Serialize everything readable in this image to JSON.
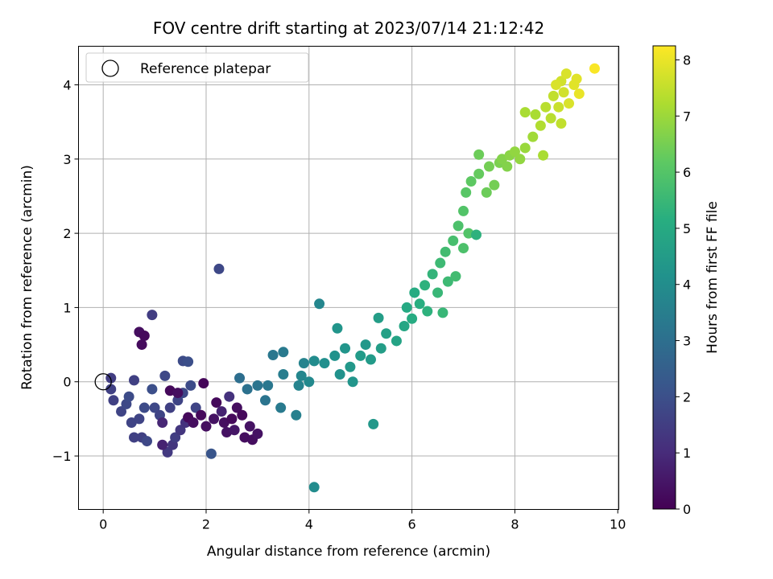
{
  "chart_data": {
    "type": "scatter",
    "title": "FOV centre drift starting at 2023/07/14 21:12:42",
    "xlabel": "Angular distance from reference (arcmin)",
    "ylabel": "Rotation from reference (arcmin)",
    "xlim": [
      -0.48,
      10.02
    ],
    "ylim": [
      -1.72,
      4.52
    ],
    "xticks": [
      0,
      2,
      4,
      6,
      8,
      10
    ],
    "yticks": [
      -1,
      0,
      1,
      2,
      3,
      4
    ],
    "xtick_labels": [
      "0",
      "2",
      "4",
      "6",
      "8",
      "10"
    ],
    "ytick_labels": [
      "−1",
      "0",
      "1",
      "2",
      "3",
      "4"
    ],
    "grid": true,
    "legend": {
      "placement": "top-left",
      "entries": [
        "Reference platepar"
      ]
    },
    "reference_point": {
      "x": 0,
      "y": 0,
      "marker": "open-circle"
    },
    "colorbar": {
      "label": "Hours from first FF file",
      "colormap": "viridis",
      "range": [
        0,
        8.25
      ],
      "ticks": [
        0,
        1,
        2,
        3,
        4,
        5,
        6,
        7,
        8
      ],
      "tick_labels": [
        "0",
        "1",
        "2",
        "3",
        "4",
        "5",
        "6",
        "7",
        "8"
      ]
    },
    "series": [
      {
        "color_by": "hours",
        "points": [
          {
            "x": 0.7,
            "y": 0.67,
            "h": 0.3
          },
          {
            "x": 0.8,
            "y": 0.62,
            "h": 0.2
          },
          {
            "x": 0.75,
            "y": 0.5,
            "h": 0.25
          },
          {
            "x": 0.95,
            "y": 0.9,
            "h": 1.5
          },
          {
            "x": 2.25,
            "y": 1.52,
            "h": 1.8
          },
          {
            "x": 1.2,
            "y": 0.08,
            "h": 1.8
          },
          {
            "x": 1.55,
            "y": 0.28,
            "h": 1.9
          },
          {
            "x": 1.65,
            "y": 0.27,
            "h": 2.0
          },
          {
            "x": 0.6,
            "y": 0.02,
            "h": 1.6
          },
          {
            "x": 0.15,
            "y": 0.05,
            "h": 1.5
          },
          {
            "x": 0.15,
            "y": -0.1,
            "h": 1.6
          },
          {
            "x": 0.2,
            "y": -0.25,
            "h": 1.6
          },
          {
            "x": 0.35,
            "y": -0.4,
            "h": 1.7
          },
          {
            "x": 0.45,
            "y": -0.3,
            "h": 1.8
          },
          {
            "x": 0.5,
            "y": -0.2,
            "h": 1.9
          },
          {
            "x": 0.55,
            "y": -0.55,
            "h": 1.7
          },
          {
            "x": 0.6,
            "y": -0.75,
            "h": 1.6
          },
          {
            "x": 0.7,
            "y": -0.5,
            "h": 1.7
          },
          {
            "x": 0.75,
            "y": -0.75,
            "h": 1.6
          },
          {
            "x": 0.85,
            "y": -0.8,
            "h": 1.8
          },
          {
            "x": 0.8,
            "y": -0.35,
            "h": 1.9
          },
          {
            "x": 0.95,
            "y": -0.1,
            "h": 2.0
          },
          {
            "x": 1.0,
            "y": -0.35,
            "h": 1.8
          },
          {
            "x": 1.1,
            "y": -0.45,
            "h": 1.7
          },
          {
            "x": 1.25,
            "y": -0.95,
            "h": 1.4
          },
          {
            "x": 1.35,
            "y": -0.85,
            "h": 1.3
          },
          {
            "x": 1.4,
            "y": -0.75,
            "h": 1.5
          },
          {
            "x": 1.5,
            "y": -0.65,
            "h": 1.3
          },
          {
            "x": 1.6,
            "y": -0.55,
            "h": 1.2
          },
          {
            "x": 1.3,
            "y": -0.35,
            "h": 1.6
          },
          {
            "x": 1.45,
            "y": -0.25,
            "h": 1.7
          },
          {
            "x": 1.55,
            "y": -0.15,
            "h": 1.8
          },
          {
            "x": 1.7,
            "y": -0.05,
            "h": 1.9
          },
          {
            "x": 1.8,
            "y": -0.35,
            "h": 1.7
          },
          {
            "x": 1.15,
            "y": -0.55,
            "h": 0.9
          },
          {
            "x": 1.15,
            "y": -0.85,
            "h": 0.8
          },
          {
            "x": 1.3,
            "y": -0.12,
            "h": 0.2
          },
          {
            "x": 1.45,
            "y": -0.15,
            "h": 0.3
          },
          {
            "x": 1.65,
            "y": -0.48,
            "h": 0.2
          },
          {
            "x": 1.75,
            "y": -0.55,
            "h": 0.3
          },
          {
            "x": 1.9,
            "y": -0.45,
            "h": 0.2
          },
          {
            "x": 1.95,
            "y": -0.02,
            "h": 0.1
          },
          {
            "x": 2.0,
            "y": -0.6,
            "h": 0.3
          },
          {
            "x": 2.15,
            "y": -0.5,
            "h": 0.4
          },
          {
            "x": 2.2,
            "y": -0.28,
            "h": 0.2
          },
          {
            "x": 2.35,
            "y": -0.55,
            "h": 0.3
          },
          {
            "x": 2.4,
            "y": -0.68,
            "h": 0.4
          },
          {
            "x": 2.5,
            "y": -0.5,
            "h": 0.2
          },
          {
            "x": 2.6,
            "y": -0.35,
            "h": 0.3
          },
          {
            "x": 2.7,
            "y": -0.45,
            "h": 0.2
          },
          {
            "x": 2.75,
            "y": -0.75,
            "h": 0.3
          },
          {
            "x": 2.85,
            "y": -0.6,
            "h": 0.4
          },
          {
            "x": 2.9,
            "y": -0.78,
            "h": 0.3
          },
          {
            "x": 3.0,
            "y": -0.7,
            "h": 0.4
          },
          {
            "x": 2.55,
            "y": -0.65,
            "h": 0.5
          },
          {
            "x": 2.3,
            "y": -0.4,
            "h": 0.8
          },
          {
            "x": 2.45,
            "y": -0.2,
            "h": 1.2
          },
          {
            "x": 2.1,
            "y": -0.97,
            "h": 2.2
          },
          {
            "x": 2.65,
            "y": 0.05,
            "h": 3.0
          },
          {
            "x": 2.8,
            "y": -0.1,
            "h": 3.1
          },
          {
            "x": 3.0,
            "y": -0.05,
            "h": 3.2
          },
          {
            "x": 3.15,
            "y": -0.25,
            "h": 3.2
          },
          {
            "x": 3.2,
            "y": -0.05,
            "h": 3.3
          },
          {
            "x": 3.3,
            "y": 0.36,
            "h": 3.3
          },
          {
            "x": 3.5,
            "y": 0.4,
            "h": 3.4
          },
          {
            "x": 3.5,
            "y": 0.1,
            "h": 3.5
          },
          {
            "x": 3.45,
            "y": -0.35,
            "h": 3.4
          },
          {
            "x": 3.75,
            "y": -0.45,
            "h": 3.6
          },
          {
            "x": 3.8,
            "y": -0.05,
            "h": 3.7
          },
          {
            "x": 3.85,
            "y": 0.08,
            "h": 3.8
          },
          {
            "x": 3.9,
            "y": 0.25,
            "h": 3.7
          },
          {
            "x": 4.0,
            "y": 0.0,
            "h": 3.9
          },
          {
            "x": 4.1,
            "y": 0.28,
            "h": 4.0
          },
          {
            "x": 4.2,
            "y": 1.05,
            "h": 3.8
          },
          {
            "x": 4.3,
            "y": 0.25,
            "h": 4.1
          },
          {
            "x": 4.5,
            "y": 0.35,
            "h": 4.2
          },
          {
            "x": 4.55,
            "y": 0.72,
            "h": 4.3
          },
          {
            "x": 4.6,
            "y": 0.1,
            "h": 4.2
          },
          {
            "x": 4.7,
            "y": 0.45,
            "h": 4.3
          },
          {
            "x": 4.8,
            "y": 0.2,
            "h": 4.4
          },
          {
            "x": 4.85,
            "y": 0.0,
            "h": 4.3
          },
          {
            "x": 5.0,
            "y": 0.35,
            "h": 4.5
          },
          {
            "x": 5.1,
            "y": 0.5,
            "h": 4.4
          },
          {
            "x": 5.2,
            "y": 0.3,
            "h": 4.5
          },
          {
            "x": 5.35,
            "y": 0.86,
            "h": 4.6
          },
          {
            "x": 5.4,
            "y": 0.45,
            "h": 4.6
          },
          {
            "x": 5.5,
            "y": 0.65,
            "h": 4.7
          },
          {
            "x": 5.25,
            "y": -0.57,
            "h": 4.4
          },
          {
            "x": 4.1,
            "y": -1.42,
            "h": 4.0
          },
          {
            "x": 5.7,
            "y": 0.55,
            "h": 4.8
          },
          {
            "x": 5.85,
            "y": 0.75,
            "h": 4.9
          },
          {
            "x": 5.9,
            "y": 1.0,
            "h": 5.0
          },
          {
            "x": 6.0,
            "y": 0.85,
            "h": 5.1
          },
          {
            "x": 6.05,
            "y": 1.2,
            "h": 5.1
          },
          {
            "x": 6.15,
            "y": 1.05,
            "h": 5.2
          },
          {
            "x": 6.25,
            "y": 1.3,
            "h": 5.3
          },
          {
            "x": 6.3,
            "y": 0.95,
            "h": 5.3
          },
          {
            "x": 6.4,
            "y": 1.45,
            "h": 5.4
          },
          {
            "x": 6.5,
            "y": 1.2,
            "h": 5.5
          },
          {
            "x": 6.55,
            "y": 1.6,
            "h": 5.6
          },
          {
            "x": 6.6,
            "y": 0.93,
            "h": 5.5
          },
          {
            "x": 6.65,
            "y": 1.75,
            "h": 5.7
          },
          {
            "x": 6.7,
            "y": 1.35,
            "h": 5.6
          },
          {
            "x": 6.8,
            "y": 1.9,
            "h": 5.8
          },
          {
            "x": 6.85,
            "y": 1.42,
            "h": 5.7
          },
          {
            "x": 6.9,
            "y": 2.1,
            "h": 5.9
          },
          {
            "x": 7.0,
            "y": 1.8,
            "h": 5.9
          },
          {
            "x": 7.0,
            "y": 2.3,
            "h": 6.0
          },
          {
            "x": 7.1,
            "y": 2.0,
            "h": 6.0
          },
          {
            "x": 7.05,
            "y": 2.55,
            "h": 6.1
          },
          {
            "x": 7.15,
            "y": 2.7,
            "h": 6.2
          },
          {
            "x": 7.25,
            "y": 1.98,
            "h": 5.3
          },
          {
            "x": 7.3,
            "y": 2.8,
            "h": 6.3
          },
          {
            "x": 7.3,
            "y": 3.06,
            "h": 6.4
          },
          {
            "x": 7.45,
            "y": 2.55,
            "h": 6.4
          },
          {
            "x": 7.5,
            "y": 2.9,
            "h": 6.5
          },
          {
            "x": 7.6,
            "y": 2.65,
            "h": 6.5
          },
          {
            "x": 7.7,
            "y": 2.95,
            "h": 6.6
          },
          {
            "x": 7.75,
            "y": 3.0,
            "h": 6.7
          },
          {
            "x": 7.85,
            "y": 2.9,
            "h": 6.7
          },
          {
            "x": 7.9,
            "y": 3.05,
            "h": 6.8
          },
          {
            "x": 8.0,
            "y": 3.1,
            "h": 6.9
          },
          {
            "x": 8.1,
            "y": 3.0,
            "h": 6.9
          },
          {
            "x": 8.2,
            "y": 3.15,
            "h": 7.0
          },
          {
            "x": 8.35,
            "y": 3.3,
            "h": 7.1
          },
          {
            "x": 8.4,
            "y": 3.6,
            "h": 7.2
          },
          {
            "x": 8.2,
            "y": 3.63,
            "h": 7.2
          },
          {
            "x": 8.5,
            "y": 3.45,
            "h": 7.3
          },
          {
            "x": 8.55,
            "y": 3.05,
            "h": 7.2
          },
          {
            "x": 8.6,
            "y": 3.7,
            "h": 7.4
          },
          {
            "x": 8.7,
            "y": 3.55,
            "h": 7.4
          },
          {
            "x": 8.75,
            "y": 3.85,
            "h": 7.5
          },
          {
            "x": 8.85,
            "y": 3.7,
            "h": 7.6
          },
          {
            "x": 8.9,
            "y": 3.48,
            "h": 7.5
          },
          {
            "x": 8.9,
            "y": 4.05,
            "h": 7.7
          },
          {
            "x": 8.95,
            "y": 3.9,
            "h": 7.7
          },
          {
            "x": 9.0,
            "y": 4.15,
            "h": 7.8
          },
          {
            "x": 9.05,
            "y": 3.75,
            "h": 7.8
          },
          {
            "x": 9.15,
            "y": 4.0,
            "h": 7.9
          },
          {
            "x": 9.2,
            "y": 4.08,
            "h": 7.9
          },
          {
            "x": 9.25,
            "y": 3.88,
            "h": 8.0
          },
          {
            "x": 8.8,
            "y": 4.0,
            "h": 7.8
          },
          {
            "x": 9.55,
            "y": 4.22,
            "h": 8.2
          }
        ]
      }
    ]
  }
}
